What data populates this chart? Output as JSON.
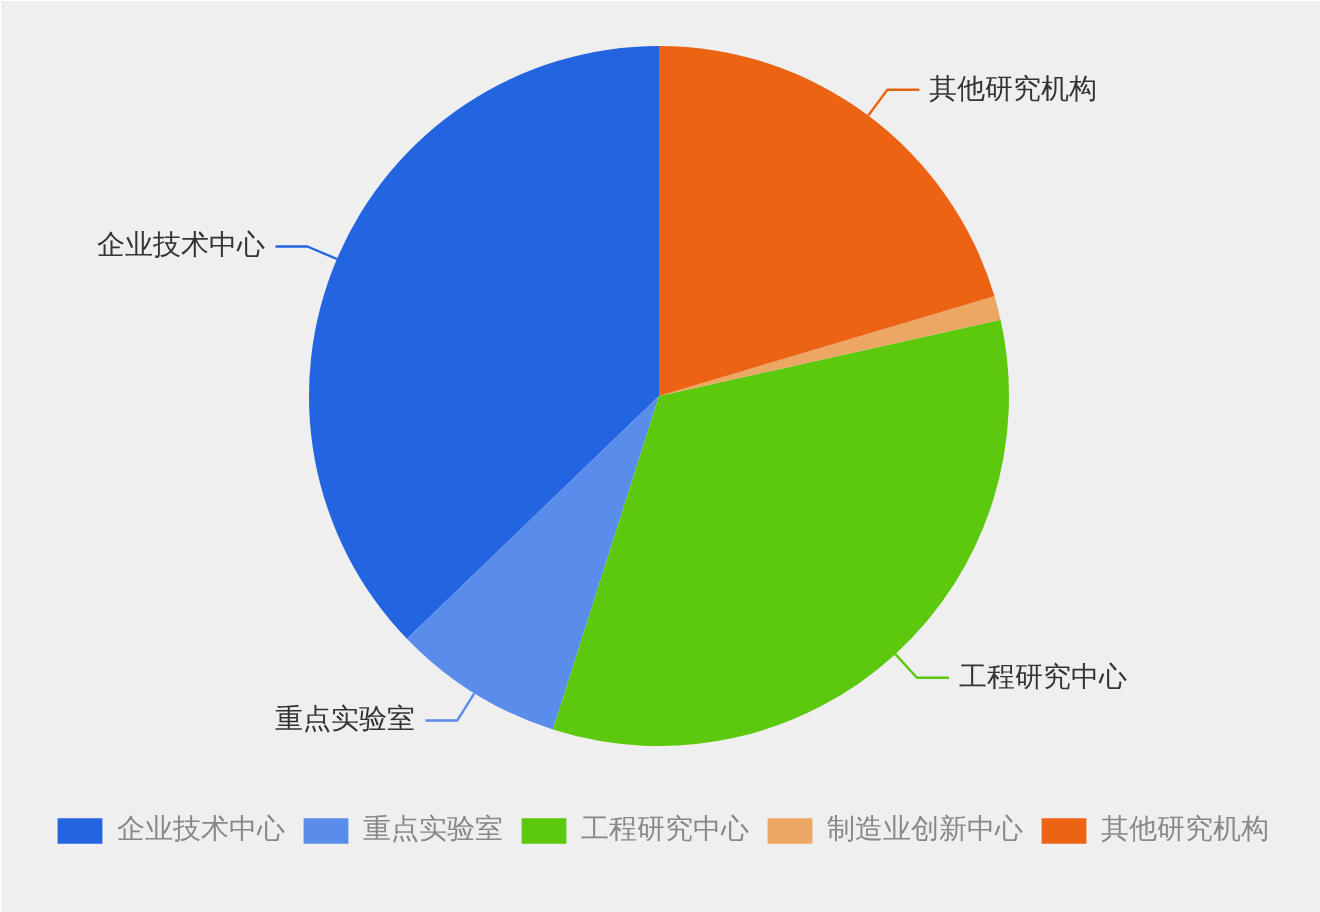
{
  "chart_data": {
    "type": "pie",
    "categories": [
      "企业技术中心",
      "重点实验室",
      "工程研究中心",
      "制造业创新中心",
      "其他研究机构"
    ],
    "values": [
      37.2,
      7.9,
      33.4,
      1.1,
      20.4
    ],
    "colors": [
      "#2364e0",
      "#5a8cec",
      "#5cc90e",
      "#eda765",
      "#ec6413"
    ],
    "legend": "bottom"
  }
}
